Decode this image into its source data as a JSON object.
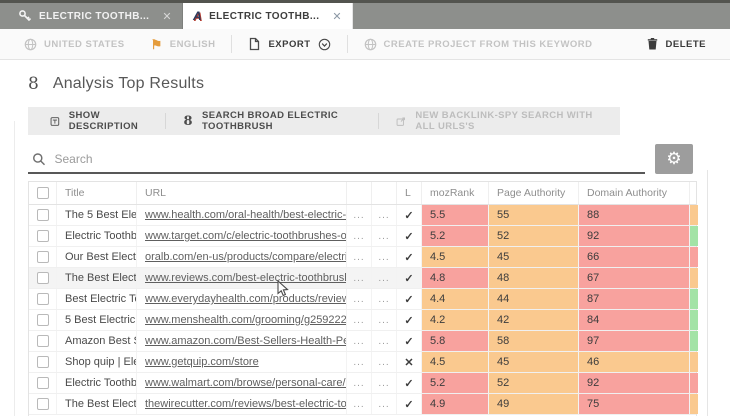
{
  "icons": {
    "close": "✕",
    "check": "✓",
    "cross": "✕",
    "gear": "⚙",
    "flag": "⚑",
    "google": "8",
    "app": "A",
    "ellipsis": "..."
  },
  "tabs": [
    {
      "label": "ELECTRIC TOOTHB...",
      "icon": "key-icon",
      "active": false
    },
    {
      "label": "ELECTRIC TOOTHB...",
      "icon": "analysis-app-icon",
      "active": true
    }
  ],
  "toolbar": {
    "country": "UNITED STATES",
    "language": "ENGLISH",
    "export": "EXPORT",
    "create_project": "CREATE PROJECT FROM THIS KEYWORD",
    "delete": "DELETE"
  },
  "page": {
    "title": "Analysis Top Results"
  },
  "actions": {
    "show_description": "SHOW DESCRIPTION",
    "search_broad": "SEARCH BROAD ELECTRIC TOOTHBRUSH",
    "new_backlink": "NEW BACKLINK-SPY SEARCH WITH ALL URLS'S"
  },
  "search": {
    "placeholder": "Search"
  },
  "colors": {
    "red": "#f8a29e",
    "orange": "#fac98f",
    "green": "#a3e3a6"
  },
  "table": {
    "columns": [
      "",
      "Title",
      "URL",
      "",
      "",
      "L",
      "mozRank",
      "Page Authority",
      "Domain Authority",
      ""
    ],
    "rows": [
      {
        "title": "The 5 Best Elec...",
        "url": "www.health.com/oral-health/best-electric-to...",
        "link": "check",
        "mozrank": "5.5",
        "mozrank_color": "red",
        "page_authority": "55",
        "pa_color": "orange",
        "domain_authority": "88",
        "da_color": "red",
        "extra_color": "orange",
        "highlight": false
      },
      {
        "title": "Electric Toothb...",
        "url": "www.target.com/c/electric-toothbrushes-oral...",
        "link": "check",
        "mozrank": "5.2",
        "mozrank_color": "red",
        "page_authority": "52",
        "pa_color": "orange",
        "domain_authority": "92",
        "da_color": "red",
        "extra_color": "green",
        "highlight": false
      },
      {
        "title": "Our Best Electr...",
        "url": "oralb.com/en-us/products/compare/electric-t...",
        "link": "check",
        "mozrank": "4.5",
        "mozrank_color": "orange",
        "page_authority": "45",
        "pa_color": "orange",
        "domain_authority": "66",
        "da_color": "red",
        "extra_color": "red",
        "highlight": false
      },
      {
        "title": "The Best Electr...",
        "url": "www.reviews.com/best-electric-toothbrush/",
        "link": "check",
        "mozrank": "4.8",
        "mozrank_color": "red",
        "page_authority": "48",
        "pa_color": "orange",
        "domain_authority": "67",
        "da_color": "red",
        "extra_color": "orange",
        "highlight": true
      },
      {
        "title": "Best Electric To...",
        "url": "www.everydayhealth.com/products/reviews/b...",
        "link": "check",
        "mozrank": "4.4",
        "mozrank_color": "orange",
        "page_authority": "44",
        "pa_color": "orange",
        "domain_authority": "87",
        "da_color": "red",
        "extra_color": "green",
        "highlight": false
      },
      {
        "title": "5 Best Electric ...",
        "url": "www.menshealth.com/grooming/g25922261/...",
        "link": "check",
        "mozrank": "4.2",
        "mozrank_color": "orange",
        "page_authority": "42",
        "pa_color": "orange",
        "domain_authority": "84",
        "da_color": "red",
        "extra_color": "green",
        "highlight": false
      },
      {
        "title": "Amazon Best S...",
        "url": "www.amazon.com/Best-Sellers-Health-Perso...",
        "link": "check",
        "mozrank": "5.8",
        "mozrank_color": "red",
        "page_authority": "58",
        "pa_color": "orange",
        "domain_authority": "97",
        "da_color": "red",
        "extra_color": "green",
        "highlight": false
      },
      {
        "title": "Shop quip | Ele...",
        "url": "www.getquip.com/store",
        "link": "cross",
        "mozrank": "4.5",
        "mozrank_color": "orange",
        "page_authority": "45",
        "pa_color": "orange",
        "domain_authority": "46",
        "da_color": "orange",
        "extra_color": "orange",
        "highlight": false
      },
      {
        "title": "Electric Toothb...",
        "url": "www.walmart.com/browse/personal-care/elec...",
        "link": "check",
        "mozrank": "5.2",
        "mozrank_color": "red",
        "page_authority": "52",
        "pa_color": "orange",
        "domain_authority": "92",
        "da_color": "red",
        "extra_color": "red",
        "highlight": false
      },
      {
        "title": "The Best Electr...",
        "url": "thewirecutter.com/reviews/best-electric-toot...",
        "link": "check",
        "mozrank": "4.9",
        "mozrank_color": "red",
        "page_authority": "49",
        "pa_color": "orange",
        "domain_authority": "75",
        "da_color": "red",
        "extra_color": "orange",
        "highlight": false
      }
    ]
  }
}
